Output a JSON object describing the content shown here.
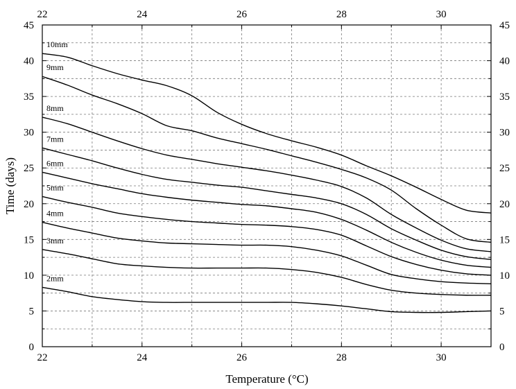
{
  "chart_data": {
    "type": "line",
    "xlabel": "Temperature (°C)",
    "ylabel": "Time (days)",
    "xlim": [
      22,
      31
    ],
    "ylim": [
      0,
      45
    ],
    "x_ticks": [
      22,
      24,
      26,
      28,
      30
    ],
    "x_tick_labels": [
      "22",
      "24",
      "26",
      "28",
      "30"
    ],
    "y_ticks": [
      0,
      5,
      10,
      15,
      20,
      25,
      30,
      35,
      40,
      45
    ],
    "y_tick_labels": [
      "0",
      "5",
      "10",
      "15",
      "20",
      "25",
      "30",
      "35",
      "40",
      "45"
    ],
    "grid": true,
    "mirror_axes": true,
    "series": [
      {
        "name": "2mm",
        "x": [
          22,
          22.5,
          23,
          23.5,
          24,
          24.5,
          25,
          25.5,
          26,
          26.5,
          27,
          27.5,
          28,
          28.5,
          29,
          29.5,
          30,
          30.5,
          31
        ],
        "values": [
          8.3,
          7.7,
          7.0,
          6.6,
          6.3,
          6.2,
          6.2,
          6.2,
          6.2,
          6.2,
          6.2,
          6.0,
          5.7,
          5.3,
          4.9,
          4.8,
          4.8,
          4.9,
          5.0
        ]
      },
      {
        "name": "3mm",
        "x": [
          22,
          22.5,
          23,
          23.5,
          24,
          24.5,
          25,
          25.5,
          26,
          26.5,
          27,
          27.5,
          28,
          28.5,
          29,
          29.5,
          30,
          30.5,
          31
        ],
        "values": [
          13.6,
          13.0,
          12.3,
          11.6,
          11.3,
          11.1,
          11.0,
          11.0,
          11.0,
          11.0,
          10.8,
          10.4,
          9.7,
          8.7,
          7.9,
          7.5,
          7.3,
          7.2,
          7.2
        ]
      },
      {
        "name": "4mm",
        "x": [
          22,
          22.5,
          23,
          23.5,
          24,
          24.5,
          25,
          25.5,
          26,
          26.5,
          27,
          27.5,
          28,
          28.5,
          29,
          29.5,
          30,
          30.5,
          31
        ],
        "values": [
          17.4,
          16.6,
          15.9,
          15.2,
          14.8,
          14.5,
          14.4,
          14.3,
          14.2,
          14.2,
          14.0,
          13.5,
          12.7,
          11.4,
          10.1,
          9.5,
          9.1,
          8.9,
          8.8
        ]
      },
      {
        "name": "5mm",
        "x": [
          22,
          22.5,
          23,
          23.5,
          24,
          24.5,
          25,
          25.5,
          26,
          26.5,
          27,
          27.5,
          28,
          28.5,
          29,
          29.5,
          30,
          30.5,
          31
        ],
        "values": [
          21.0,
          20.2,
          19.5,
          18.7,
          18.2,
          17.8,
          17.5,
          17.3,
          17.1,
          17.0,
          16.8,
          16.4,
          15.6,
          14.1,
          12.6,
          11.5,
          10.7,
          10.2,
          10.0
        ]
      },
      {
        "name": "6mm",
        "x": [
          22,
          22.5,
          23,
          23.5,
          24,
          24.5,
          25,
          25.5,
          26,
          26.5,
          27,
          27.5,
          28,
          28.5,
          29,
          29.5,
          30,
          30.5,
          31
        ],
        "values": [
          24.4,
          23.6,
          22.8,
          22.1,
          21.4,
          20.9,
          20.5,
          20.2,
          19.9,
          19.7,
          19.3,
          18.8,
          17.8,
          16.3,
          14.6,
          13.2,
          12.1,
          11.4,
          11.1
        ]
      },
      {
        "name": "7mm",
        "x": [
          22,
          22.5,
          23,
          23.5,
          24,
          24.5,
          25,
          25.5,
          26,
          26.5,
          27,
          27.5,
          28,
          28.5,
          29,
          29.5,
          30,
          30.5,
          31
        ],
        "values": [
          27.8,
          26.9,
          26.0,
          25.0,
          24.1,
          23.4,
          23.0,
          22.6,
          22.3,
          21.8,
          21.3,
          20.8,
          20.0,
          18.5,
          16.5,
          14.9,
          13.5,
          12.6,
          12.2
        ]
      },
      {
        "name": "8mm",
        "x": [
          22,
          22.5,
          23,
          23.5,
          24,
          24.5,
          25,
          25.5,
          26,
          26.5,
          27,
          27.5,
          28,
          28.5,
          29,
          29.5,
          30,
          30.5,
          31
        ],
        "values": [
          32.1,
          31.2,
          30.0,
          28.8,
          27.7,
          26.8,
          26.2,
          25.6,
          25.1,
          24.6,
          24.0,
          23.3,
          22.4,
          20.8,
          18.5,
          16.6,
          14.9,
          13.7,
          13.3
        ]
      },
      {
        "name": "9mm",
        "x": [
          22,
          22.5,
          23,
          23.5,
          24,
          24.5,
          25,
          25.5,
          26,
          26.5,
          27,
          27.5,
          28,
          28.5,
          29,
          29.5,
          30,
          30.5,
          31
        ],
        "values": [
          37.8,
          36.6,
          35.2,
          34.0,
          32.6,
          30.9,
          30.2,
          29.2,
          28.4,
          27.6,
          26.7,
          25.8,
          24.8,
          23.6,
          21.9,
          19.3,
          17.0,
          15.1,
          14.6
        ]
      },
      {
        "name": "10mm",
        "x": [
          22,
          22.5,
          23,
          23.5,
          24,
          24.5,
          25,
          25.5,
          26,
          26.5,
          27,
          27.5,
          28,
          28.5,
          29,
          29.5,
          30,
          30.5,
          31
        ],
        "values": [
          41.0,
          40.5,
          39.3,
          38.2,
          37.3,
          36.5,
          35.1,
          32.8,
          31.1,
          29.8,
          28.8,
          27.9,
          26.8,
          25.3,
          23.9,
          22.3,
          20.6,
          19.1,
          18.7
        ]
      }
    ],
    "series_labels": [
      "2mm",
      "3mm",
      "4mm",
      "5mm",
      "6mm",
      "7mm",
      "8mm",
      "9mm",
      "10mm"
    ]
  }
}
